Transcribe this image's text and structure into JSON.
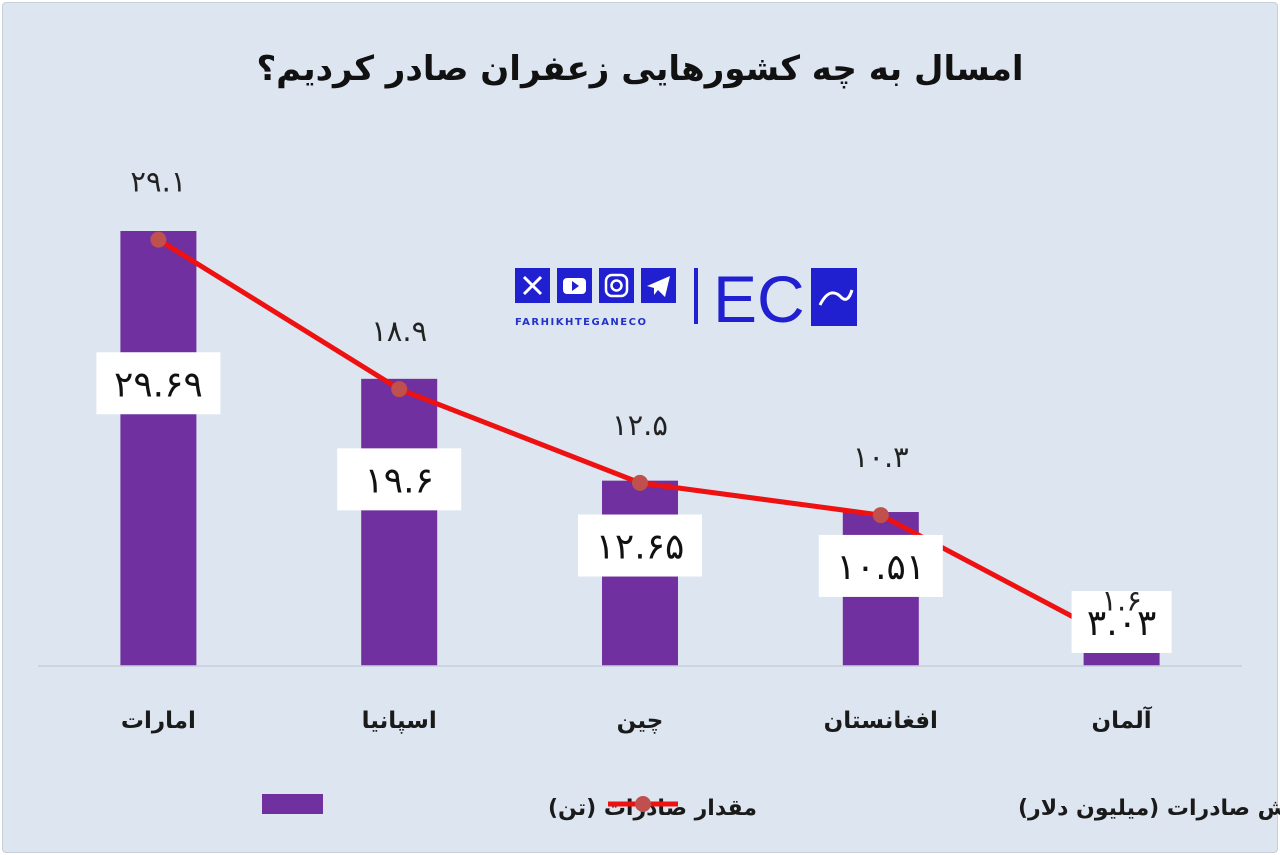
{
  "logo": {
    "brand_text": "FARHIKHTEGANECO",
    "mark_text": "EC",
    "icons": [
      "x-icon",
      "youtube-icon",
      "instagram-icon",
      "telegram-icon"
    ],
    "brand_color": "#2020d0"
  },
  "chart_data": {
    "type": "bar",
    "title": "امسال به چه کشورهایی زعفران صادر کردیم؟",
    "categories": [
      "امارات",
      "اسپانیا",
      "چین",
      "افغانستان",
      "آلمان"
    ],
    "series": [
      {
        "name": "مقدار صادرات (تن)",
        "kind": "bar",
        "color": "#7030a0",
        "values": [
          29.69,
          19.6,
          12.65,
          10.51,
          3.03
        ],
        "labels": [
          "۲۹.۶۹",
          "۱۹.۶",
          "۱۲.۶۵",
          "۱۰.۵۱",
          "۳.۰۳"
        ]
      },
      {
        "name": "ارزش صادرات (میلیون دلار)",
        "kind": "line",
        "color": "#ee1111",
        "marker_color": "#c0504d",
        "values": [
          29.1,
          18.9,
          12.5,
          10.3,
          1.6
        ],
        "labels": [
          "۲۹.۱",
          "۱۸.۹",
          "۱۲.۵",
          "۱۰.۳",
          "۱.۶"
        ]
      }
    ],
    "legend_position": "bottom",
    "grid": false
  }
}
